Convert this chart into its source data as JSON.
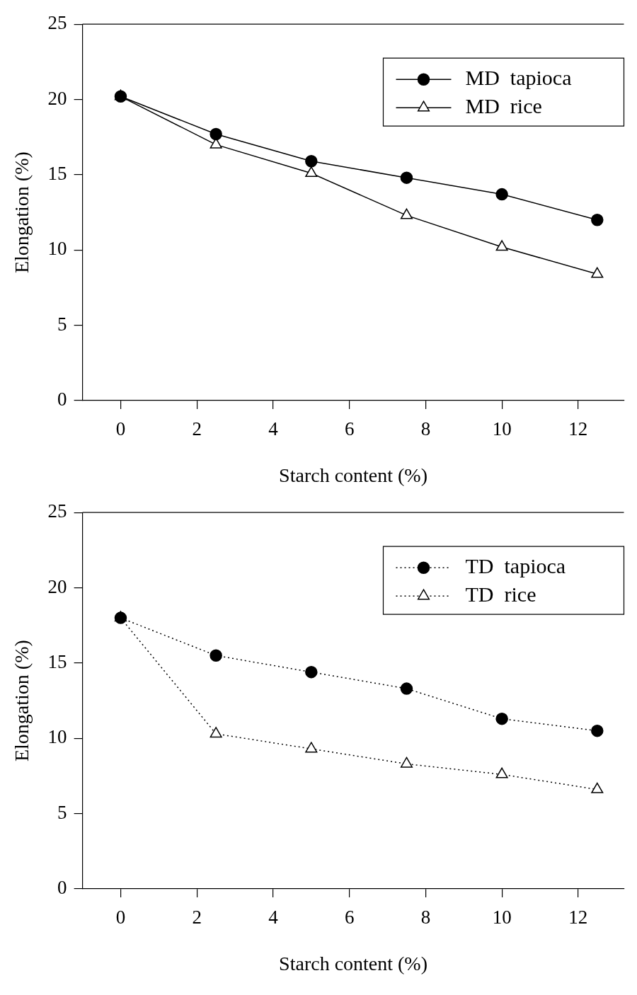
{
  "chart_data": [
    {
      "type": "line",
      "xlabel": "Starch content (%)",
      "ylabel": "Elongation (%)",
      "x": [
        0,
        2.5,
        5,
        7.5,
        10,
        12.5
      ],
      "xlim": [
        -1,
        13.2
      ],
      "xticks": [
        0,
        2,
        4,
        6,
        8,
        10,
        12
      ],
      "ylim": [
        0,
        25
      ],
      "yticks": [
        0,
        5,
        10,
        15,
        20,
        25
      ],
      "grid": false,
      "legend": "top right",
      "line_style": "solid",
      "series": [
        {
          "name": "MD  tapioca",
          "color": "#000000",
          "marker": "circle",
          "values": [
            20.2,
            17.7,
            15.9,
            14.8,
            13.7,
            12.0
          ]
        },
        {
          "name": "MD  rice",
          "color": "#000000",
          "marker": "triangle",
          "values": [
            20.2,
            17.0,
            15.1,
            12.3,
            10.2,
            8.4
          ]
        }
      ]
    },
    {
      "type": "line",
      "xlabel": "Starch content (%)",
      "ylabel": "Elongation (%)",
      "x": [
        0,
        2.5,
        5,
        7.5,
        10,
        12.5
      ],
      "xlim": [
        -1,
        13.2
      ],
      "xticks": [
        0,
        2,
        4,
        6,
        8,
        10,
        12
      ],
      "ylim": [
        0,
        25
      ],
      "yticks": [
        0,
        5,
        10,
        15,
        20,
        25
      ],
      "grid": false,
      "legend": "top right",
      "line_style": "dotted",
      "series": [
        {
          "name": "TD  tapioca",
          "color": "#000000",
          "marker": "circle",
          "values": [
            18.0,
            15.5,
            14.4,
            13.3,
            11.3,
            10.5
          ]
        },
        {
          "name": "TD  rice",
          "color": "#000000",
          "marker": "triangle",
          "values": [
            18.0,
            10.3,
            9.3,
            8.3,
            7.6,
            6.6
          ]
        }
      ]
    }
  ]
}
